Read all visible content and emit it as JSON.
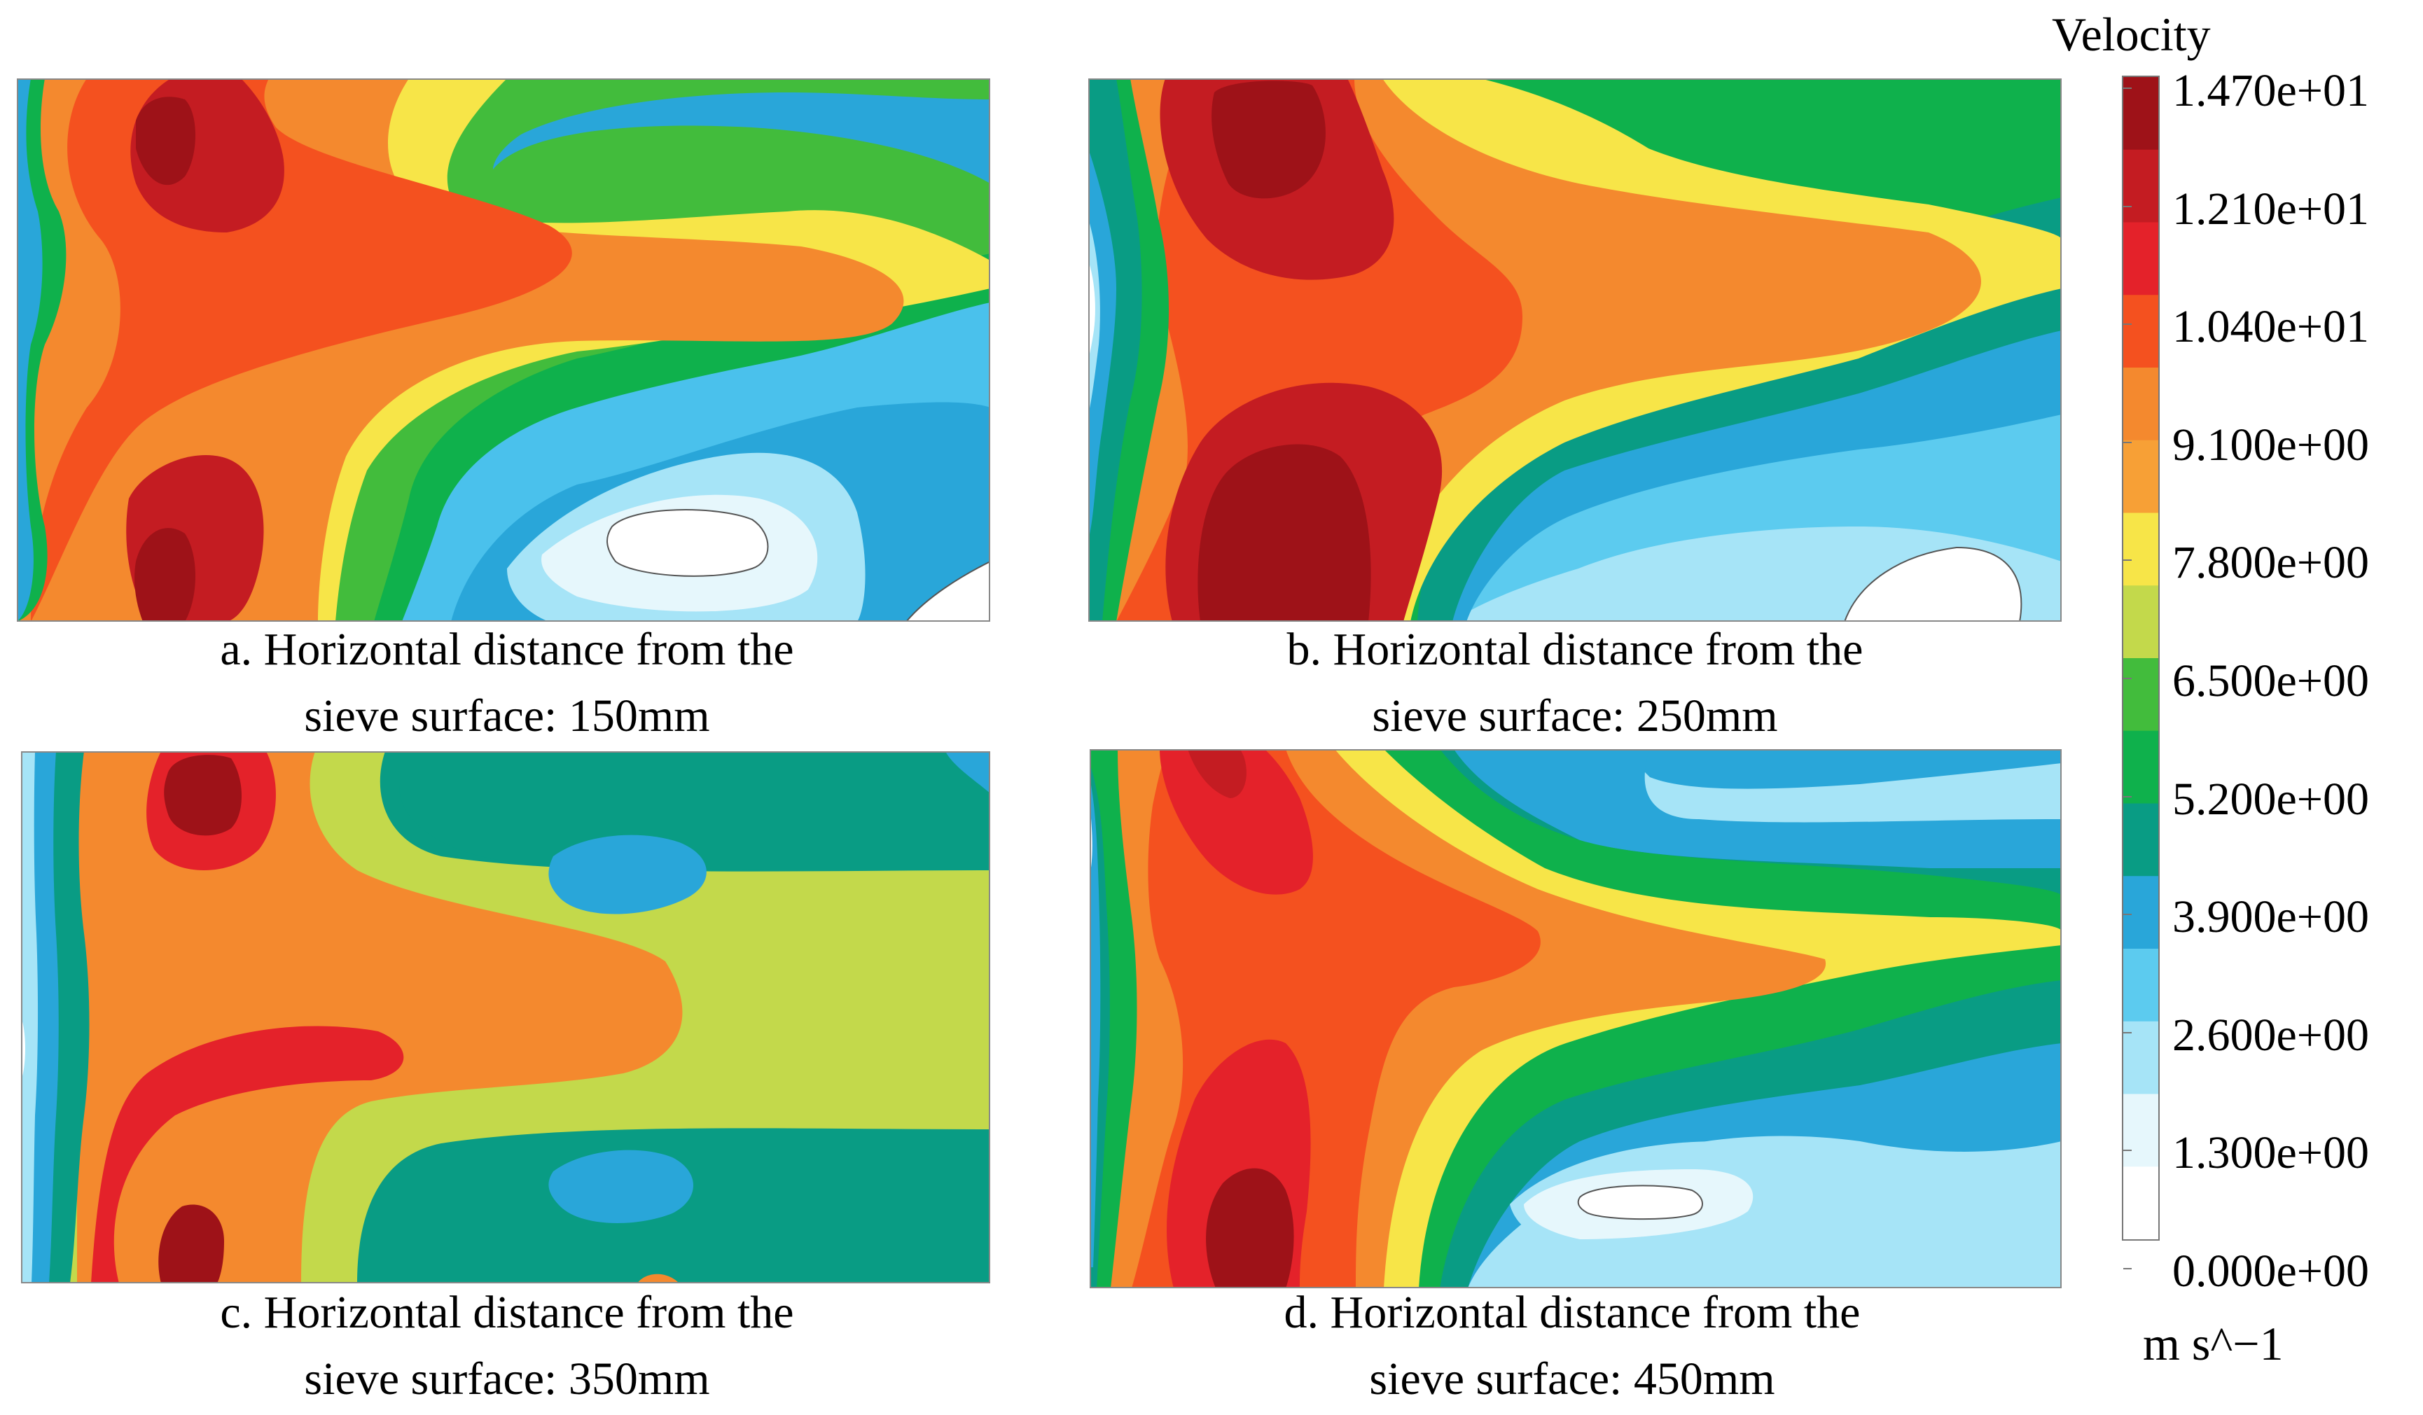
{
  "colors": {
    "levels": [
      "#ffffff",
      "#e6f7fc",
      "#a6e4f7",
      "#5ccbef",
      "#29a6d9",
      "#099c84",
      "#0fb14c",
      "#42bc3c",
      "#c3d94b",
      "#f7e548",
      "#f7a036",
      "#f4892e",
      "#f4511f",
      "#e4222a",
      "#c41c22",
      "#9e1218"
    ]
  },
  "chart_data": {
    "type": "heatmap",
    "colorbar": {
      "title": "Velocity",
      "unit": "m s^−1",
      "ticks": [
        "1.470e+01",
        "1.210e+01",
        "1.040e+01",
        "9.100e+00",
        "7.800e+00",
        "6.500e+00",
        "5.200e+00",
        "3.900e+00",
        "2.600e+00",
        "1.300e+00",
        "0.000e+00"
      ],
      "range": [
        0,
        14.7
      ]
    },
    "panels": [
      {
        "label_line1": "a. Horizontal distance from the",
        "label_line2": "sieve surface: 150mm",
        "distance_mm": 150
      },
      {
        "label_line1": "b. Horizontal distance from the",
        "label_line2": "sieve surface: 250mm",
        "distance_mm": 250
      },
      {
        "label_line1": "c. Horizontal distance from the",
        "label_line2": "sieve surface: 350mm",
        "distance_mm": 350
      },
      {
        "label_line1": "d. Horizontal distance from the",
        "label_line2": "sieve surface: 450mm",
        "distance_mm": 450
      }
    ]
  }
}
